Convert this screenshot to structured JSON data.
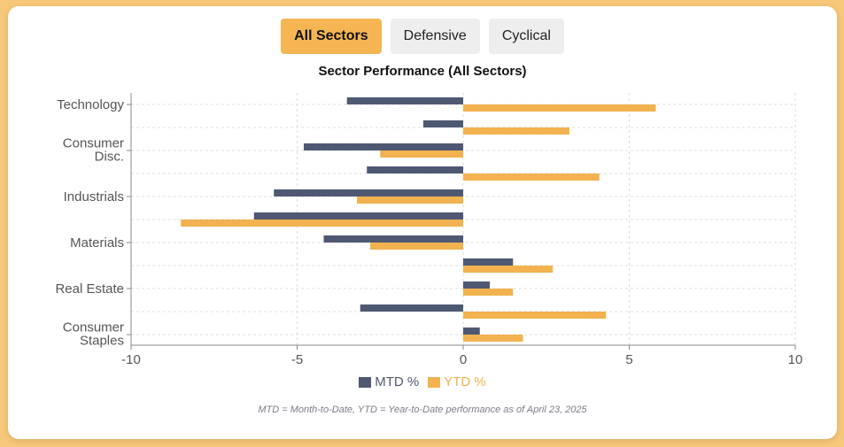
{
  "tabs": [
    {
      "label": "All Sectors",
      "active": true
    },
    {
      "label": "Defensive",
      "active": false
    },
    {
      "label": "Cyclical",
      "active": false
    }
  ],
  "chart_data": {
    "type": "bar",
    "orientation": "horizontal",
    "title": "Sector Performance (All Sectors)",
    "y_tick_labels": [
      {
        "lines": [
          "Technology"
        ],
        "category_index": 0
      },
      {
        "lines": [
          "Consumer",
          "Disc."
        ],
        "category_index": 2
      },
      {
        "lines": [
          "Industrials"
        ],
        "category_index": 4
      },
      {
        "lines": [
          "Materials"
        ],
        "category_index": 6
      },
      {
        "lines": [
          "Real Estate"
        ],
        "category_index": 8
      },
      {
        "lines": [
          "Consumer",
          "Staples"
        ],
        "category_index": 10
      }
    ],
    "category_count": 11,
    "series": [
      {
        "name": "MTD %",
        "color": "#4f5872",
        "values": [
          -3.5,
          -1.2,
          -4.8,
          -2.9,
          -5.7,
          -6.3,
          -4.2,
          1.5,
          0.8,
          -3.1,
          0.5
        ]
      },
      {
        "name": "YTD %",
        "color": "#f2b250",
        "values": [
          5.8,
          3.2,
          -2.5,
          4.1,
          -3.2,
          -8.5,
          -2.8,
          2.7,
          1.5,
          4.3,
          1.8
        ]
      }
    ],
    "xlim": [
      -10,
      10
    ],
    "x_ticks": [
      "-10",
      "-5",
      "0",
      "5",
      "10"
    ],
    "grid": true,
    "legend_position": "bottom"
  },
  "footnote": "MTD = Month-to-Date, YTD = Year-to-Date performance as of April 23, 2025"
}
